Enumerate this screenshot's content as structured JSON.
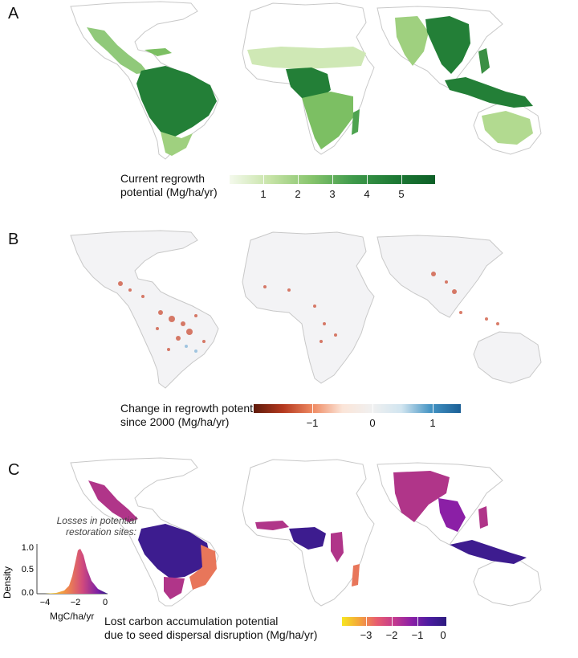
{
  "panels": {
    "a": {
      "letter": "A"
    },
    "b": {
      "letter": "B"
    },
    "c": {
      "letter": "C"
    }
  },
  "colorbars": {
    "a": {
      "label_line1": "Current regrowth",
      "label_line2": "potential (Mg/ha/yr)",
      "ticks": [
        "1",
        "2",
        "3",
        "4",
        "5"
      ],
      "colors": [
        "#f4f9ec",
        "#c6e3a6",
        "#86c46c",
        "#3f9a4b",
        "#1e7a35",
        "#0d5f27"
      ]
    },
    "b": {
      "label_line1": "Change in regrowth potential",
      "label_line2": "since 2000 (Mg/ha/yr)",
      "ticks": [
        "−1",
        "0",
        "1"
      ],
      "colors": [
        "#5e1a0b",
        "#b5391f",
        "#ef8a62",
        "#fbe5d8",
        "#f0f0f0",
        "#d1e5f0",
        "#4393c3",
        "#1b5f96"
      ]
    },
    "c": {
      "label_line1": "Lost carbon accumulation potential",
      "label_line2": "due to seed dispersal disruption (Mg/ha/yr)",
      "ticks": [
        "−3",
        "−2",
        "−1",
        "0"
      ],
      "colors": [
        "#f6e620",
        "#f4a43b",
        "#e75d6f",
        "#c43a8e",
        "#8b1fa6",
        "#4b1ca0",
        "#2c1b7e"
      ]
    }
  },
  "inset": {
    "title_line1": "Losses in potential",
    "title_line2": "restoration sites:",
    "ylabel": "Density",
    "xlabel": "MgC/ha/yr",
    "yticks": [
      "0.0",
      "0.5",
      "1.0"
    ],
    "xticks": [
      "−4",
      "−2",
      "0"
    ]
  },
  "map_colors": {
    "land_outline": "#c8c8c8",
    "a_light": "#cfe8b5",
    "a_mid": "#7cbf63",
    "a_dark": "#237f37",
    "b_base": "#f0f0f2",
    "b_red": "#c9452b",
    "b_blue": "#6aa6d2",
    "c_purple": "#3d1c8f",
    "c_magenta": "#b03589",
    "c_orange": "#e8765a"
  }
}
